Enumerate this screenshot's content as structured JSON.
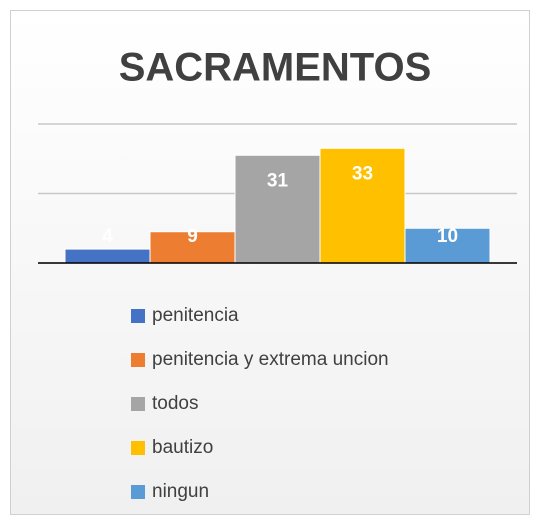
{
  "chart_data": {
    "type": "bar",
    "title": "SACRAMENTOS",
    "series": [
      {
        "name": "penitencia",
        "color": "#4472c4",
        "values": [
          4
        ]
      },
      {
        "name": "penitencia y extrema uncion",
        "color": "#ed7d31",
        "values": [
          9
        ]
      },
      {
        "name": "todos",
        "color": "#a5a5a5",
        "values": [
          31
        ]
      },
      {
        "name": "bautizo",
        "color": "#ffc000",
        "values": [
          33
        ]
      },
      {
        "name": "ningun",
        "color": "#5b9bd5",
        "values": [
          10
        ]
      }
    ],
    "ylim": [
      0,
      40
    ],
    "yticks": [
      0,
      20,
      40
    ],
    "grid": true,
    "legend": "bottom"
  }
}
